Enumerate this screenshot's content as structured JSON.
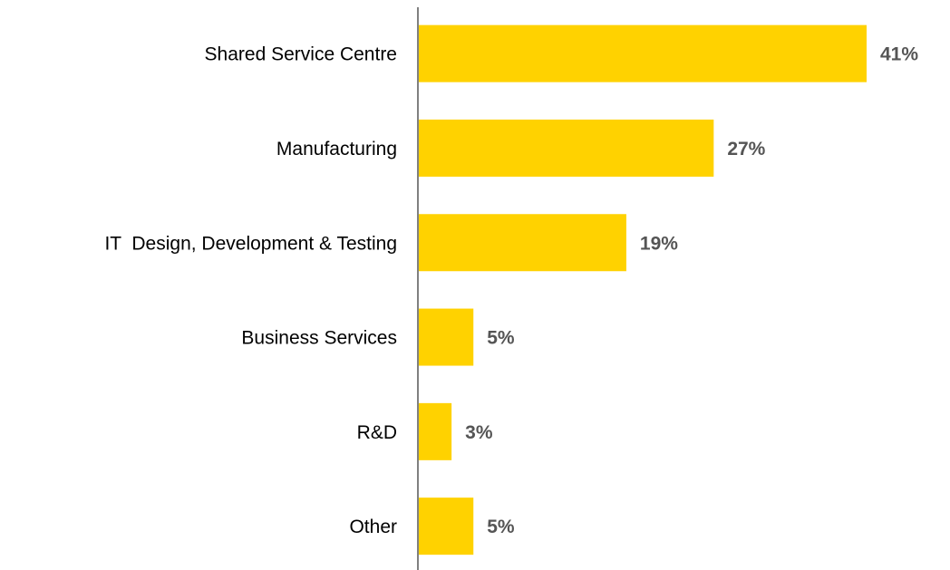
{
  "chart_data": {
    "type": "bar",
    "orientation": "horizontal",
    "categories": [
      "Shared Service Centre",
      "Manufacturing",
      "IT  Design, Development & Testing",
      "Business Services",
      "R&D",
      "Other"
    ],
    "values": [
      41,
      27,
      19,
      5,
      3,
      5
    ],
    "value_labels": [
      "41%",
      "27%",
      "19%",
      "5%",
      "3%",
      "5%"
    ],
    "color": "#ffd200"
  }
}
